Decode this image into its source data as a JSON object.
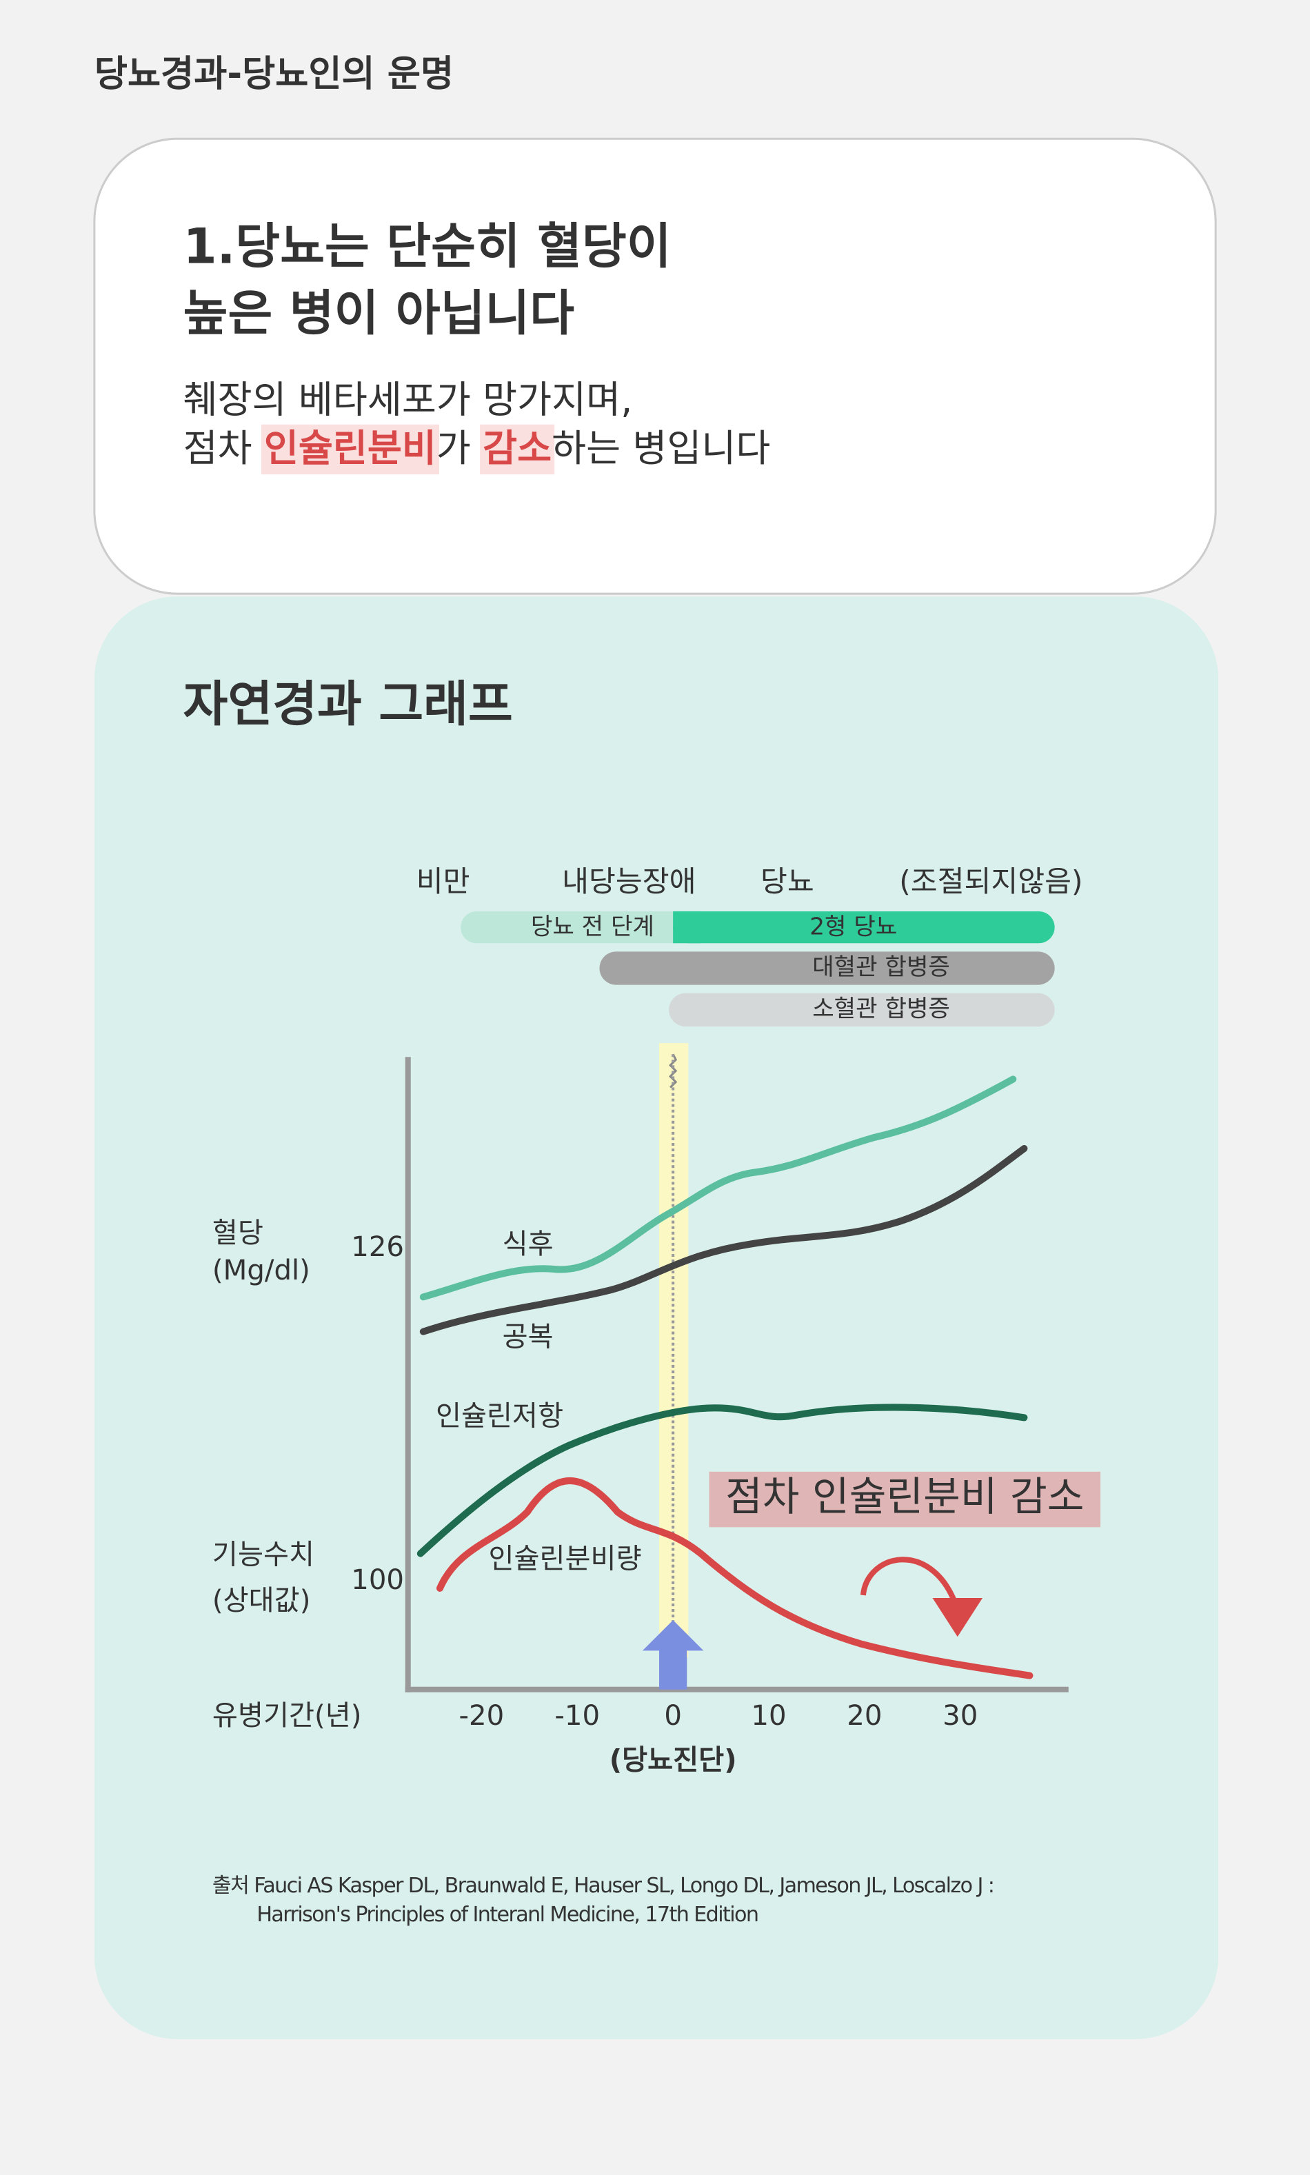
{
  "header": {
    "title": "당뇨경과-당뇨인의 운명"
  },
  "card": {
    "heading": [
      "1.당뇨는 단순히 혈당이",
      "높은 병이 아닙니다"
    ],
    "line1": "췌장의 베타세포가 망가지며,",
    "line2": [
      "점차 ",
      "인슐린분비",
      "가 ",
      "감소",
      "하는 병입니다"
    ]
  },
  "graph": {
    "title": "자연경과 그래프",
    "stages": [
      "비만",
      "내당능장애",
      "당뇨",
      "(조절되지않음)"
    ],
    "bars": [
      "당뇨 전 단계",
      "2형 당뇨",
      "대혈관 합병증",
      "소혈관 합병증"
    ],
    "y_label_top": [
      "혈당",
      "(Mg/dl)"
    ],
    "y_tick_top": 126,
    "y_label_bottom": [
      "기능수치",
      "(상대값)"
    ],
    "y_tick_bottom": 100,
    "x_label": "유병기간(년)",
    "xticks": [
      -20,
      -10,
      0,
      10,
      20,
      30
    ],
    "diagnosis": "(당뇨진단)",
    "curve_labels": [
      "식후",
      "공복",
      "인슐린저항",
      "인슐린분비량"
    ],
    "callout": "점차 인슐린분비 감소"
  },
  "source": [
    "출처 Fauci AS Kasper DL, Braunwald E, Hauser SL, Longo DL, Jameson JL, Loscalzo J :",
    "Harrison's Principles of Interanl Medicine, 17th Edition"
  ]
}
